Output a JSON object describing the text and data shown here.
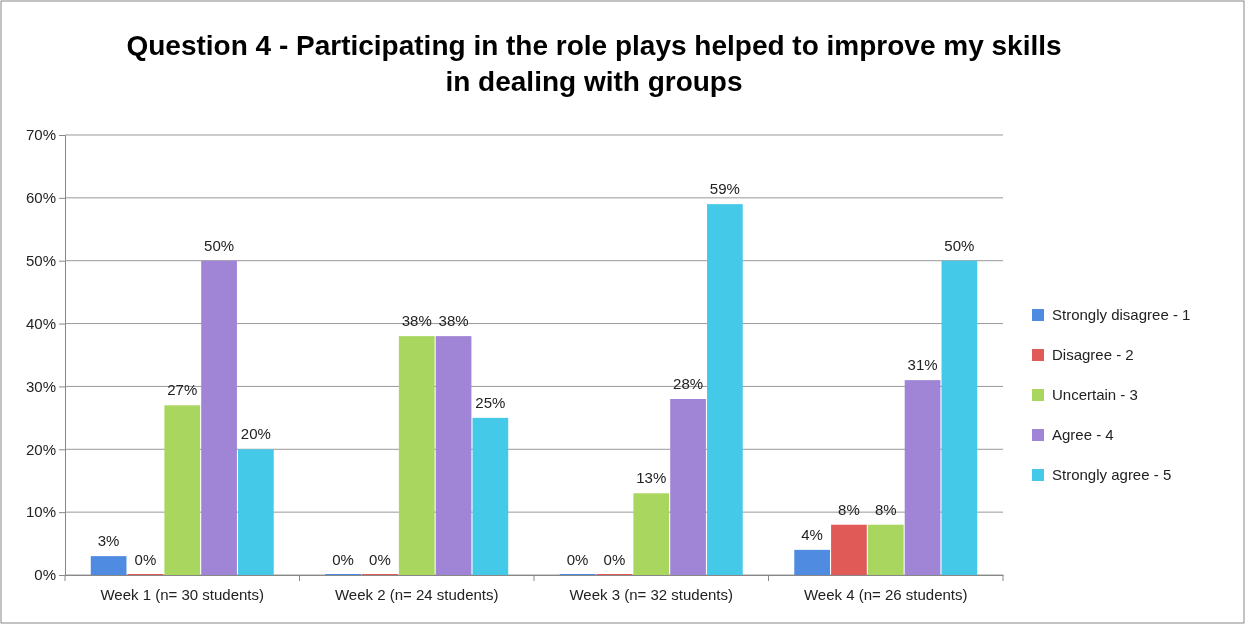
{
  "chart_data": {
    "type": "bar",
    "title": "Question 4 - Participating in the role plays helped to improve my skills in dealing with groups",
    "categories": [
      "Week 1 (n= 30 students)",
      "Week 2 (n= 24 students)",
      "Week 3 (n= 32 students)",
      "Week 4 (n= 26 students)"
    ],
    "series": [
      {
        "name": "Strongly disagree - 1",
        "color": "#4f8be0",
        "values": [
          3,
          0,
          0,
          4
        ],
        "value_labels": [
          "3%",
          "0%",
          "0%",
          "4%"
        ]
      },
      {
        "name": "Disagree - 2",
        "color": "#e05a57",
        "values": [
          0,
          0,
          0,
          8
        ],
        "value_labels": [
          "0%",
          "0%",
          "0%",
          "8%"
        ]
      },
      {
        "name": "Uncertain - 3",
        "color": "#a9d65e",
        "values": [
          27,
          38,
          13,
          8
        ],
        "value_labels": [
          "27%",
          "38%",
          "13%",
          "8%"
        ]
      },
      {
        "name": "Agree - 4",
        "color": "#a084d6",
        "values": [
          50,
          38,
          28,
          31
        ],
        "value_labels": [
          "50%",
          "38%",
          "28%",
          "31%"
        ]
      },
      {
        "name": "Strongly agree - 5",
        "color": "#45c9e8",
        "values": [
          20,
          25,
          59,
          50
        ],
        "value_labels": [
          "20%",
          "25%",
          "59%",
          "50%"
        ]
      }
    ],
    "ylim": [
      0,
      70
    ],
    "yticks": [
      {
        "value": 0,
        "label": "0%"
      },
      {
        "value": 10,
        "label": "10%"
      },
      {
        "value": 20,
        "label": "20%"
      },
      {
        "value": 30,
        "label": "30%"
      },
      {
        "value": 40,
        "label": "40%"
      },
      {
        "value": 50,
        "label": "50%"
      },
      {
        "value": 60,
        "label": "60%"
      },
      {
        "value": 70,
        "label": "70%"
      }
    ],
    "grid": "y",
    "legend": "right"
  }
}
